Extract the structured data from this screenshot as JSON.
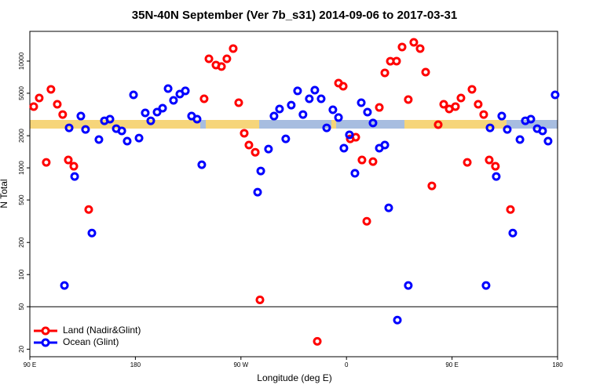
{
  "chart_data": {
    "type": "scatter",
    "title": "35N-40N September (Ver 7b_s31)   2014-09-06 to 2017-03-31",
    "x_label": "Longitude (deg E)",
    "y_label": "N Total",
    "log_y": true,
    "legend": "bottom-left",
    "hline": 50,
    "xlim": [
      90,
      540
    ],
    "ylim": [
      17,
      19000
    ],
    "xticks": [
      {
        "value": 90,
        "label": "90 E"
      },
      180,
      {
        "value": 270,
        "label": "90 W"
      },
      {
        "value": 360,
        "label": "0"
      },
      {
        "value": 450,
        "label": "90 E"
      },
      {
        "value": 540,
        "label": "180"
      }
    ],
    "yticks": [
      20,
      50,
      100,
      200,
      500,
      1000,
      2000,
      5000,
      10000
    ],
    "series": [
      {
        "name": "Land (Nadir&Glint)",
        "color": "#ff0000",
        "x": [
          93.3,
          98,
          104,
          108,
          113.4,
          118,
          122.8,
          127.5,
          140.2,
          238.6,
          242.7,
          248.7,
          253.4,
          258,
          263.4,
          268.1,
          272.8,
          276.8,
          282.2,
          286.2,
          335.1,
          353.2,
          357.2,
          363.2,
          367.9,
          373.2,
          377.3,
          382.6,
          388,
          392.7,
          397.4,
          402.7,
          407.4,
          412.7,
          417.4,
          422.8,
          427.5,
          432.8,
          438.2,
          442.9,
          447.6,
          452.9,
          457.6,
          463,
          467,
          472.3,
          477,
          481.7,
          487,
          499.8
        ],
        "values": [
          3750,
          4510,
          1125,
          5440,
          3940,
          3160,
          1185,
          1035,
          407,
          4440,
          10520,
          9190,
          8890,
          10520,
          13110,
          4080,
          2110,
          1635,
          1400,
          58,
          23.7,
          6220,
          5820,
          1870,
          1935,
          1185,
          316,
          1145,
          3680,
          7760,
          9980,
          10000,
          13560,
          4360,
          15000,
          13110,
          7880,
          678,
          2540,
          3940,
          3560,
          3750,
          4510,
          1125,
          5440,
          3940,
          3160,
          1185,
          1035,
          407
        ]
      },
      {
        "name": "Ocean (Glint)",
        "color": "#0000ff",
        "x": [
          119.5,
          123.5,
          128.2,
          133.5,
          137.5,
          142.9,
          148.9,
          153.6,
          158.3,
          163.7,
          168.4,
          173,
          178.4,
          183.1,
          188.4,
          193.1,
          198.5,
          203.2,
          207.9,
          212.5,
          217.9,
          222.6,
          227.9,
          232.6,
          236.6,
          284.2,
          286.9,
          293.5,
          298.2,
          302.9,
          308.2,
          312.9,
          318.3,
          322.9,
          328.3,
          333,
          338.4,
          343.1,
          348.4,
          353.2,
          357.8,
          362.5,
          367.2,
          372.6,
          377.9,
          382.6,
          388,
          392.7,
          396,
          403.4,
          412.7,
          479,
          482.4,
          487.7,
          492.4,
          497.1,
          501.8,
          507.9,
          512.5,
          517.2,
          522.6,
          527.2,
          531.9,
          537.9
        ],
        "values": [
          79,
          2370,
          830,
          3055,
          2290,
          245,
          1840,
          2760,
          2860,
          2330,
          2220,
          1780,
          4830,
          1900,
          3270,
          2760,
          3330,
          3620,
          5530,
          4290,
          4910,
          5260,
          3055,
          2860,
          1070,
          592,
          935,
          1500,
          3055,
          3560,
          1870,
          3870,
          5260,
          3160,
          4440,
          5340,
          4440,
          2370,
          3500,
          2960,
          1530,
          2040,
          889,
          4080,
          3330,
          2630,
          1530,
          1635,
          422,
          37.5,
          79,
          79,
          2370,
          830,
          3055,
          2290,
          245,
          1840,
          2760,
          2860,
          2330,
          2220,
          1780,
          4830
        ]
      }
    ]
  }
}
